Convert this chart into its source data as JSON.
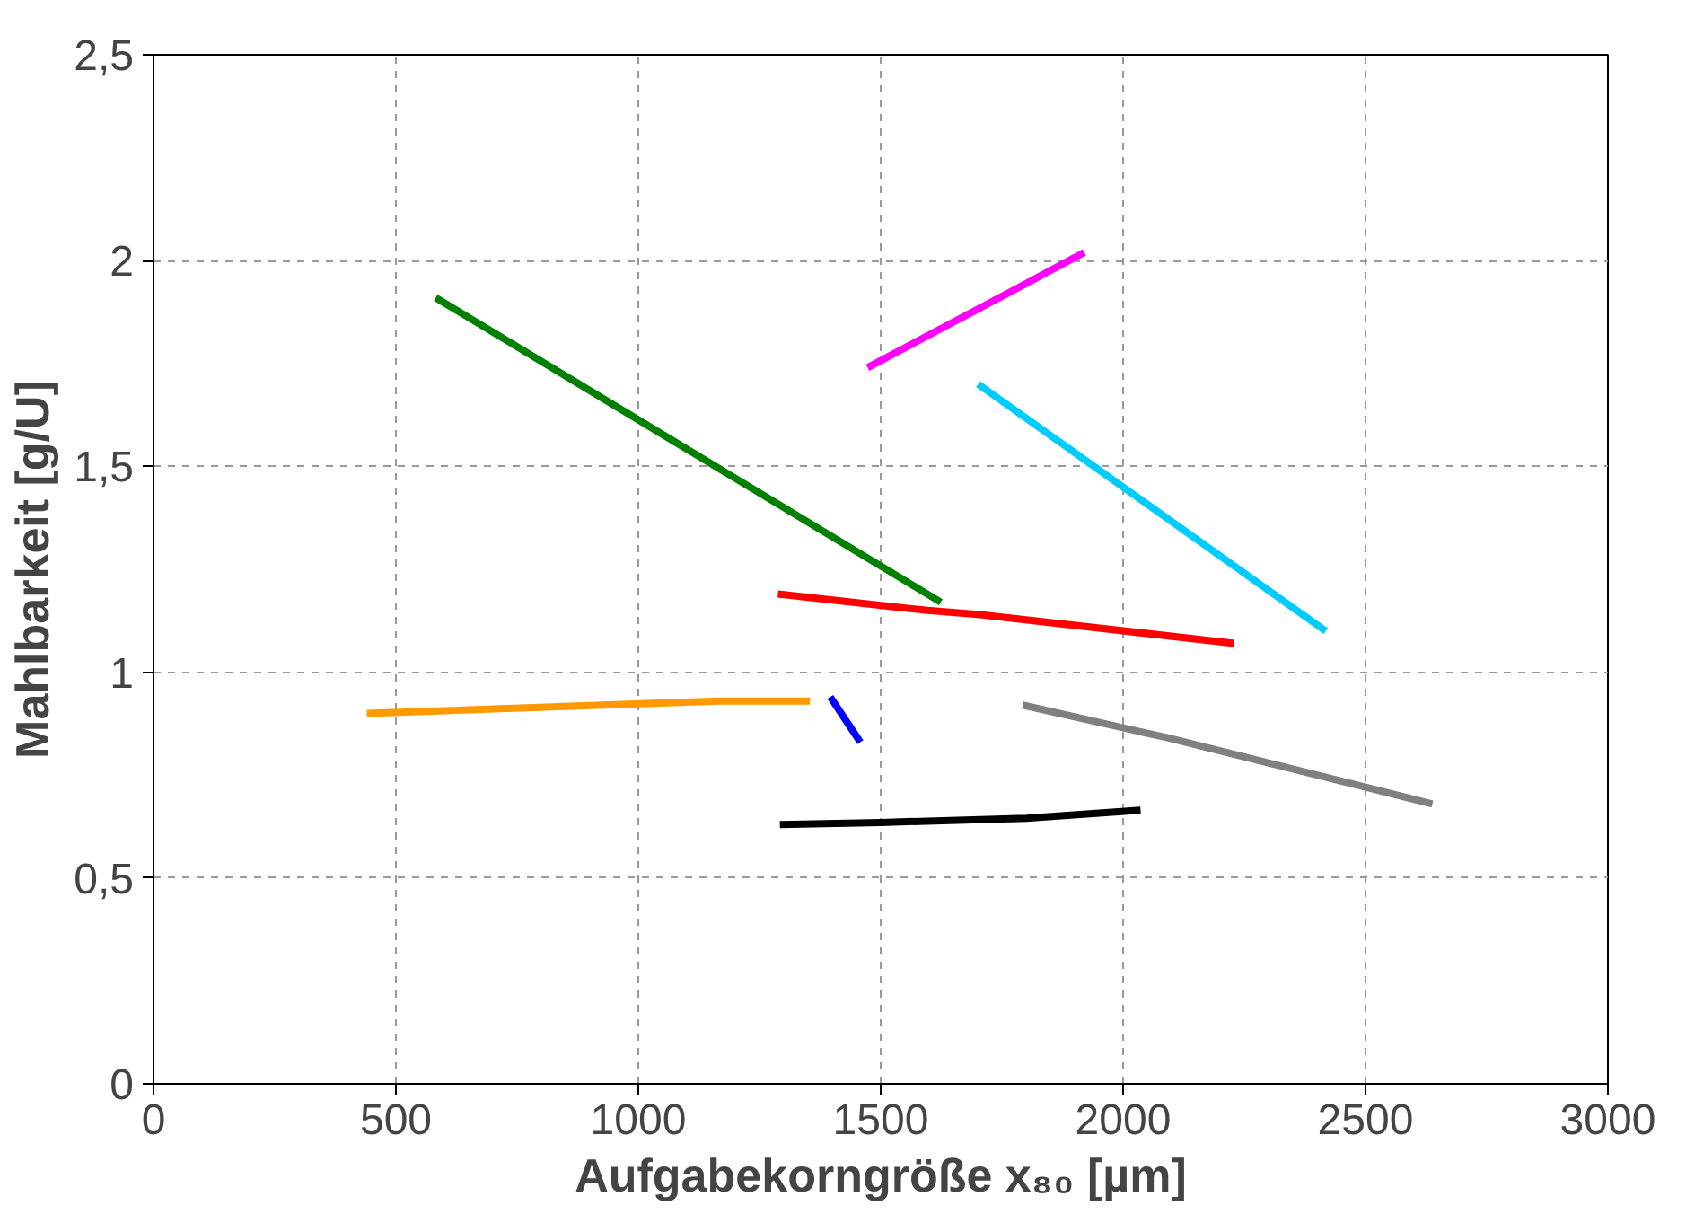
{
  "chart_data": {
    "type": "line",
    "xlabel": "Aufgabekorngröße x₈₀ [µm]",
    "ylabel": "Mahlbarkeit [g/U]",
    "xlim": [
      0,
      3000
    ],
    "ylim": [
      0,
      2.5
    ],
    "xticks": [
      0,
      500,
      1000,
      1500,
      2000,
      2500,
      3000
    ],
    "yticks": [
      0,
      {
        "value": 0.5,
        "label": "0,5"
      },
      1,
      {
        "value": 1.5,
        "label": "1,5"
      },
      2,
      {
        "value": 2.5,
        "label": "2,5"
      }
    ],
    "grid": true,
    "marker": "none",
    "line_style": "solid",
    "series": [
      {
        "color": "#008000",
        "x": [
          582,
          1624
        ],
        "values": [
          1.91,
          1.17
        ]
      },
      {
        "color": "#ff00ff",
        "x": [
          1473,
          1793,
          1920
        ],
        "values": [
          1.74,
          1.94,
          2.02
        ]
      },
      {
        "color": "#00ccff",
        "x": [
          1701,
          2418
        ],
        "values": [
          1.7,
          1.1
        ]
      },
      {
        "color": "#ff0000",
        "x": [
          1288,
          1597,
          1705,
          2229
        ],
        "values": [
          1.19,
          1.15,
          1.14,
          1.07
        ]
      },
      {
        "color": "#ff9900",
        "x": [
          440,
          1169,
          1354
        ],
        "values": [
          0.9,
          0.93,
          0.93
        ]
      },
      {
        "color": "#0000ff",
        "x": [
          1396,
          1458
        ],
        "values": [
          0.94,
          0.83
        ]
      },
      {
        "color": "#808080",
        "x": [
          1793,
          2094,
          2638
        ],
        "values": [
          0.92,
          0.84,
          0.68
        ]
      },
      {
        "color": "#000000",
        "x": [
          1292,
          1500,
          1800,
          2036
        ],
        "values": [
          0.63,
          0.635,
          0.645,
          0.665
        ]
      }
    ]
  }
}
